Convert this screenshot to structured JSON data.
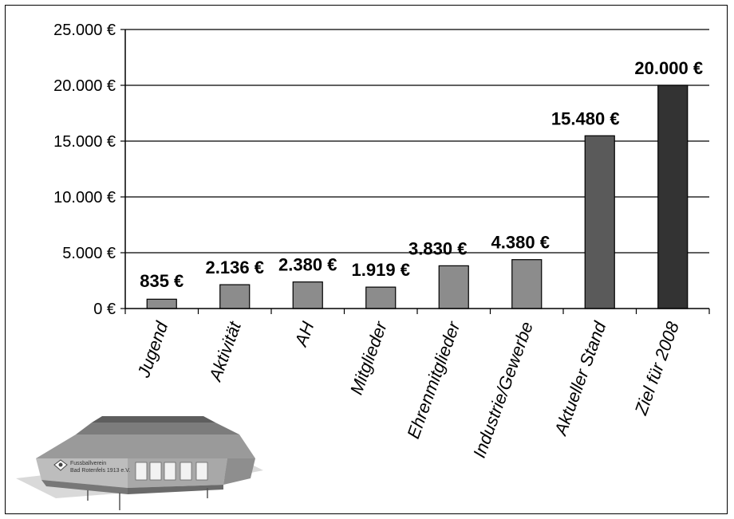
{
  "chart_data": {
    "type": "bar",
    "title": "",
    "xlabel": "",
    "ylabel": "",
    "categories": [
      "Jugend",
      "Aktivität",
      "AH",
      "Mitglieder",
      "Ehrenmitglieder",
      "Industrie/Gewerbe",
      "Aktueller Stand",
      "Ziel für 2008"
    ],
    "values": [
      835,
      2136,
      2380,
      1919,
      3830,
      4380,
      15480,
      20000
    ],
    "data_labels": [
      "835 €",
      "2.136 €",
      "2.380 €",
      "1.919 €",
      "3.830 €",
      "4.380 €",
      "15.480 €",
      "20.000 €"
    ],
    "bar_colors": [
      "#8c8c8c",
      "#8c8c8c",
      "#8c8c8c",
      "#8c8c8c",
      "#8c8c8c",
      "#8c8c8c",
      "#5a5a5a",
      "#333333"
    ],
    "ylim": [
      0,
      25000
    ],
    "yticks": [
      0,
      5000,
      10000,
      15000,
      20000,
      25000
    ],
    "ytick_labels": [
      "0 €",
      "5.000 €",
      "10.000 €",
      "15.000 €",
      "20.000 €",
      "25.000 €"
    ],
    "grid": true
  },
  "logo": {
    "line1": "Fussballverein",
    "line2": "Bad Rotenfels 1913 e.V."
  }
}
